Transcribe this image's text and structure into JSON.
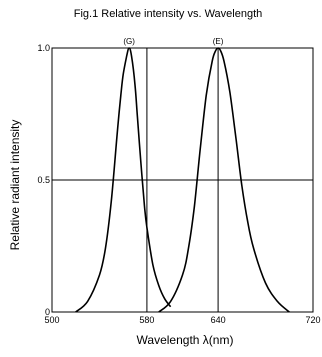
{
  "chart_data": {
    "type": "line",
    "title": "Fig.1 Relative intensity vs. Wavelength",
    "xlabel": "Wavelength λ(nm)",
    "ylabel": "Relative radiant intensity",
    "xlim": [
      500,
      720
    ],
    "ylim": [
      0,
      1.0
    ],
    "x_ticks": [
      {
        "value": 500,
        "label": "500"
      },
      {
        "value": 580,
        "label": "580"
      },
      {
        "value": 640,
        "label": "640"
      },
      {
        "value": 720,
        "label": "720"
      }
    ],
    "y_ticks": [
      {
        "value": 0,
        "label": "0"
      },
      {
        "value": 0.5,
        "label": "0.5"
      },
      {
        "value": 1.0,
        "label": "1.0"
      }
    ],
    "grid": {
      "vertical": [
        580,
        640
      ],
      "horizontal": [
        0.5
      ]
    },
    "series": [
      {
        "label": "(G)",
        "peak": 565,
        "x": [
          520,
          530,
          540,
          545,
          550,
          555,
          558,
          560,
          563,
          565,
          567,
          570,
          572,
          575,
          578,
          580,
          585,
          590,
          595,
          600
        ],
        "y": [
          0.0,
          0.04,
          0.14,
          0.24,
          0.42,
          0.68,
          0.82,
          0.9,
          0.97,
          1.0,
          0.97,
          0.86,
          0.74,
          0.56,
          0.4,
          0.32,
          0.18,
          0.1,
          0.05,
          0.02
        ]
      },
      {
        "label": "(E)",
        "peak": 640,
        "x": [
          590,
          600,
          610,
          615,
          620,
          625,
          630,
          635,
          638,
          640,
          642,
          645,
          650,
          655,
          660,
          665,
          670,
          680,
          690,
          700
        ],
        "y": [
          0.0,
          0.04,
          0.14,
          0.24,
          0.4,
          0.62,
          0.82,
          0.95,
          0.99,
          1.0,
          0.99,
          0.95,
          0.83,
          0.66,
          0.48,
          0.34,
          0.24,
          0.11,
          0.04,
          0.0
        ]
      }
    ]
  }
}
